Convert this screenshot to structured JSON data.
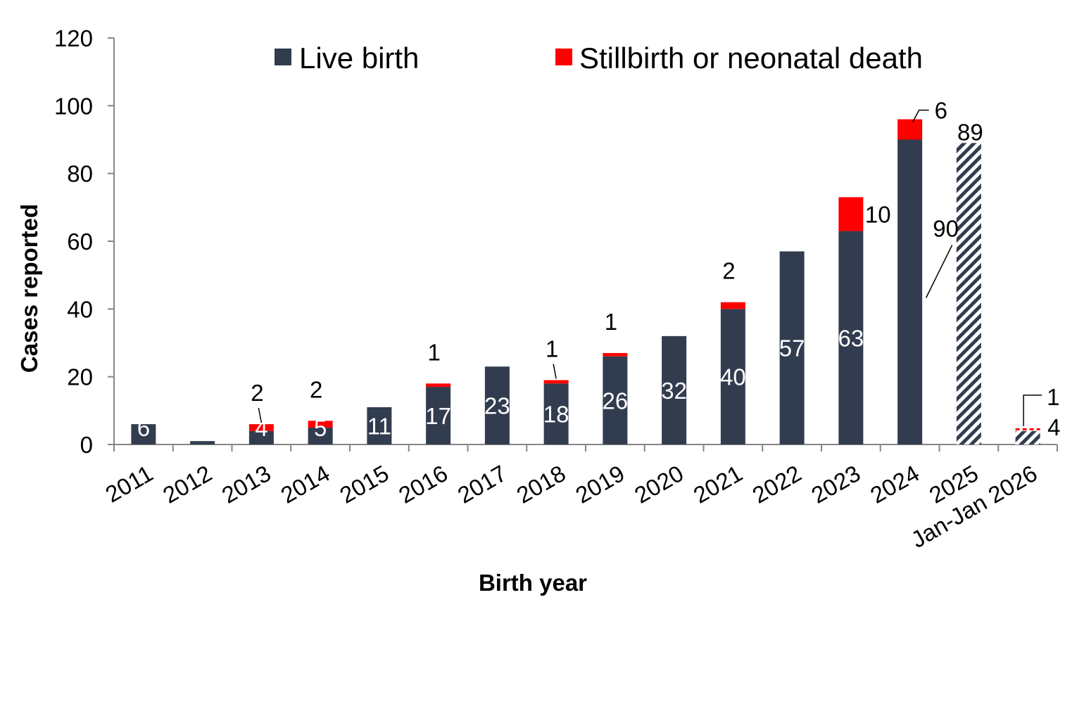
{
  "chart_data": {
    "type": "bar",
    "stacked": true,
    "title": "",
    "xlabel": "Birth year",
    "ylabel": "Cases reported",
    "ylim": [
      0,
      120
    ],
    "yticks": [
      0,
      20,
      40,
      60,
      80,
      100,
      120
    ],
    "grid": false,
    "legend_position": "top",
    "categories": [
      "2011",
      "2012",
      "2013",
      "2014",
      "2015",
      "2016",
      "2017",
      "2018",
      "2019",
      "2020",
      "2021",
      "2022",
      "2023",
      "2024",
      "2025",
      "Jan-Jan 2026"
    ],
    "hatched_categories": [
      "2025",
      "Jan-Jan 2026"
    ],
    "series": [
      {
        "name": "Live birth",
        "color": "#323c4f",
        "values": [
          6,
          1,
          4,
          5,
          11,
          17,
          23,
          18,
          26,
          32,
          40,
          57,
          63,
          90,
          89,
          4
        ],
        "data_labels": [
          "6",
          "",
          "4",
          "5",
          "11",
          "17",
          "23",
          "18",
          "26",
          "32",
          "40",
          "57",
          "63",
          "90",
          "89",
          "4"
        ]
      },
      {
        "name": "Stillbirth or neonatal death",
        "color": "#ff0000",
        "values": [
          0,
          0,
          2,
          2,
          0,
          1,
          0,
          1,
          1,
          0,
          2,
          0,
          10,
          6,
          0,
          1
        ],
        "data_labels": [
          "",
          "",
          "2",
          "2",
          "",
          "1",
          "",
          "1",
          "1",
          "",
          "2",
          "",
          "10",
          "6",
          "",
          "1"
        ]
      }
    ]
  }
}
